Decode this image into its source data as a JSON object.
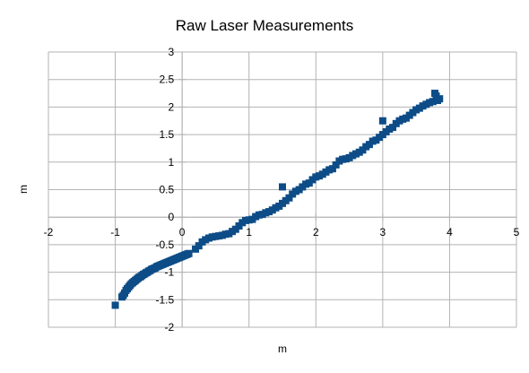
{
  "chart_data": {
    "type": "scatter",
    "title": "Raw Laser Measurements",
    "xlabel": "m",
    "ylabel": "m",
    "xlim": [
      -2,
      5
    ],
    "ylim": [
      -2,
      3
    ],
    "x_ticks": [
      "-2",
      "-1",
      "0",
      "1",
      "2",
      "3",
      "4",
      "5"
    ],
    "y_ticks": [
      "3",
      "2.5",
      "2",
      "1.5",
      "1",
      "0.5",
      "0",
      "-0.5",
      "-1",
      "-1.5",
      "-2"
    ],
    "grid": true,
    "legend": "none",
    "marker": "square",
    "colors": {
      "marker": "#0d4c87",
      "grid": "#b3b3b3",
      "axis": "#b3b3b3"
    },
    "series": [
      {
        "x": [
          -1.0,
          -0.9,
          -0.88,
          -0.86,
          -0.84,
          -0.82,
          -0.8,
          -0.78,
          -0.76,
          -0.74,
          -0.72,
          -0.7,
          -0.68,
          -0.66,
          -0.64,
          -0.62,
          -0.6,
          -0.58,
          -0.56,
          -0.54,
          -0.52,
          -0.5,
          -0.48,
          -0.46,
          -0.44,
          -0.42,
          -0.4,
          -0.38,
          -0.36,
          -0.34,
          -0.32,
          -0.3,
          -0.28,
          -0.26,
          -0.24,
          -0.22,
          -0.2,
          -0.18,
          -0.16,
          -0.14,
          -0.12,
          -0.1,
          -0.08,
          -0.06,
          -0.04,
          -0.02,
          0.0,
          0.02,
          0.04,
          0.06,
          0.08,
          0.1,
          0.2,
          0.25,
          0.3,
          0.35,
          0.4,
          0.45,
          0.5,
          0.55,
          0.6,
          0.65,
          0.7,
          0.75,
          0.8,
          0.85,
          0.9,
          0.95,
          1.0,
          1.05,
          1.1,
          1.15,
          1.2,
          1.25,
          1.3,
          1.35,
          1.4,
          1.45,
          1.5,
          1.5,
          1.55,
          1.6,
          1.65,
          1.7,
          1.75,
          1.8,
          1.85,
          1.9,
          1.95,
          2.0,
          2.05,
          2.1,
          2.15,
          2.2,
          2.25,
          2.3,
          2.35,
          2.4,
          2.45,
          2.5,
          2.55,
          2.6,
          2.65,
          2.7,
          2.75,
          2.8,
          2.85,
          2.9,
          2.95,
          3.0,
          3.0,
          3.05,
          3.1,
          3.15,
          3.2,
          3.25,
          3.3,
          3.35,
          3.4,
          3.45,
          3.5,
          3.55,
          3.6,
          3.65,
          3.7,
          3.75,
          3.78,
          3.8,
          3.82,
          3.85
        ],
        "y": [
          -1.6,
          -1.45,
          -1.42,
          -1.38,
          -1.33,
          -1.3,
          -1.27,
          -1.24,
          -1.21,
          -1.19,
          -1.17,
          -1.15,
          -1.13,
          -1.11,
          -1.09,
          -1.08,
          -1.06,
          -1.04,
          -1.03,
          -1.01,
          -1.0,
          -0.98,
          -0.97,
          -0.95,
          -0.94,
          -0.93,
          -0.92,
          -0.9,
          -0.89,
          -0.88,
          -0.87,
          -0.86,
          -0.85,
          -0.84,
          -0.83,
          -0.82,
          -0.81,
          -0.8,
          -0.79,
          -0.78,
          -0.77,
          -0.76,
          -0.75,
          -0.74,
          -0.73,
          -0.72,
          -0.71,
          -0.7,
          -0.69,
          -0.68,
          -0.67,
          -0.66,
          -0.58,
          -0.52,
          -0.45,
          -0.41,
          -0.38,
          -0.36,
          -0.35,
          -0.34,
          -0.33,
          -0.31,
          -0.3,
          -0.26,
          -0.22,
          -0.16,
          -0.1,
          -0.06,
          -0.05,
          -0.04,
          0.01,
          0.04,
          0.05,
          0.08,
          0.1,
          0.13,
          0.17,
          0.2,
          0.25,
          0.55,
          0.3,
          0.35,
          0.42,
          0.47,
          0.5,
          0.55,
          0.6,
          0.62,
          0.68,
          0.73,
          0.75,
          0.78,
          0.82,
          0.86,
          0.88,
          0.95,
          1.02,
          1.05,
          1.06,
          1.08,
          1.12,
          1.15,
          1.18,
          1.22,
          1.28,
          1.32,
          1.38,
          1.4,
          1.45,
          1.5,
          1.75,
          1.55,
          1.6,
          1.63,
          1.7,
          1.75,
          1.78,
          1.8,
          1.85,
          1.9,
          1.95,
          1.98,
          2.02,
          2.05,
          2.08,
          2.1,
          2.25,
          2.2,
          2.12,
          2.15
        ]
      }
    ]
  }
}
